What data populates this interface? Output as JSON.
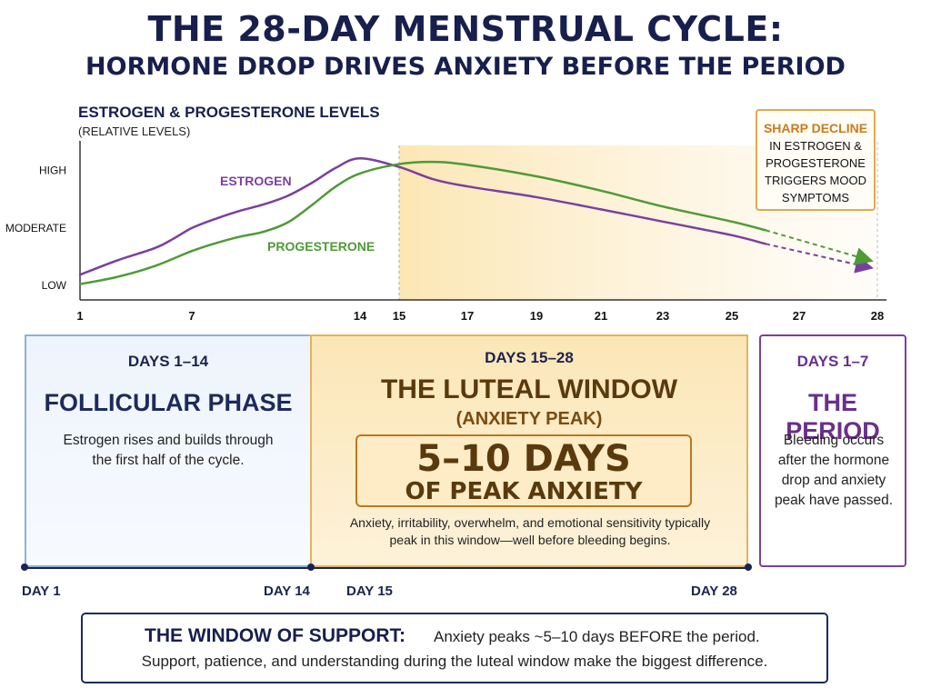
{
  "title": "THE 28-DAY MENSTRUAL CYCLE:",
  "subtitle": "HORMONE DROP DRIVES ANXIETY BEFORE THE PERIOD",
  "chart_data": {
    "type": "line",
    "title": "ESTROGEN & PROGESTERONE LEVELS",
    "subtitle": "(RELATIVE LEVELS)",
    "y_tick_labels": [
      "LOW",
      "MODERATE",
      "HIGH"
    ],
    "y_tick_values": [
      0.2,
      1.0,
      1.8
    ],
    "ylim": [
      0,
      2.15
    ],
    "xlim": [
      1,
      28
    ],
    "x_ticks": [
      1,
      7,
      14,
      15,
      17,
      19,
      21,
      23,
      25,
      27,
      28
    ],
    "shaded_region": [
      15,
      28
    ],
    "series": [
      {
        "name": "ESTROGEN",
        "color": "#7b3fa0",
        "x": [
          1,
          3,
          5,
          6,
          7,
          8,
          9,
          10,
          11,
          12,
          13,
          14,
          15,
          16,
          17,
          19,
          21,
          23,
          25,
          26
        ],
        "y": [
          0.35,
          0.55,
          0.72,
          0.85,
          1.0,
          1.13,
          1.24,
          1.33,
          1.45,
          1.63,
          1.84,
          1.97,
          1.85,
          1.68,
          1.58,
          1.43,
          1.26,
          1.09,
          0.9,
          0.78
        ],
        "projected": {
          "x": [
            26,
            28
          ],
          "y": [
            0.78,
            0.45
          ]
        }
      },
      {
        "name": "PROGESTERONE",
        "color": "#4f9a36",
        "x": [
          1,
          3,
          5,
          7,
          8,
          9,
          10,
          11,
          12,
          13,
          14,
          15,
          16,
          17,
          19,
          21,
          23,
          25,
          26
        ],
        "y": [
          0.22,
          0.32,
          0.47,
          0.68,
          0.79,
          0.88,
          0.95,
          1.08,
          1.32,
          1.58,
          1.76,
          1.89,
          1.92,
          1.88,
          1.72,
          1.52,
          1.3,
          1.09,
          0.97
        ],
        "projected": {
          "x": [
            26,
            28
          ],
          "y": [
            0.97,
            0.55
          ]
        }
      }
    ]
  },
  "callout": {
    "highlight": "SHARP DECLINE",
    "body": "IN ESTROGEN & PROGESTERONE TRIGGERS MOOD SYMPTOMS"
  },
  "phases": {
    "follicular": {
      "days": "DAYS 1–14",
      "title": "FOLLICULAR PHASE",
      "desc": "Estrogen rises and builds through the first half of the cycle."
    },
    "luteal": {
      "days": "DAYS 15–28",
      "title": "THE LUTEAL WINDOW",
      "sub": "(ANXIETY PEAK)",
      "peak_big": "5–10 DAYS",
      "peak_small": "OF PEAK ANXIETY",
      "desc": "Anxiety, irritability, overwhelm, and emotional sensitivity typically peak in this window—well before bleeding begins."
    },
    "period": {
      "days": "DAYS 1–7",
      "title": "THE PERIOD",
      "desc": "Bleeding occurs after the hormone drop and anxiety peak have passed."
    }
  },
  "timeline": {
    "day1": "DAY 1",
    "day14": "DAY 14",
    "day15": "DAY 15",
    "day28": "DAY 28"
  },
  "support": {
    "heading": "THE WINDOW OF SUPPORT:",
    "line1": "Anxiety peaks ~5–10 days BEFORE the period.",
    "line2": "Support, patience, and understanding during the luteal window make the biggest difference."
  }
}
